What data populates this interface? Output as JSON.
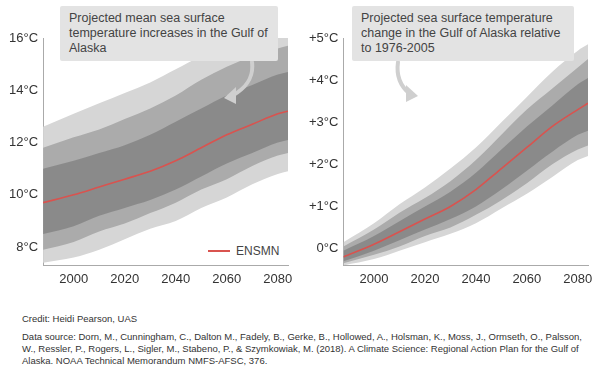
{
  "chart_data": [
    {
      "type": "line",
      "title": "Projected mean sea surface temperature increases in the Gulf of Alaska",
      "x": [
        1988,
        2000,
        2010,
        2020,
        2030,
        2040,
        2050,
        2060,
        2070,
        2080,
        2084
      ],
      "series": [
        {
          "name": "ENSMN",
          "color": "#d9534f",
          "values": [
            9.7,
            10.0,
            10.3,
            10.6,
            10.9,
            11.3,
            11.8,
            12.3,
            12.7,
            13.1,
            13.2
          ]
        }
      ],
      "bands": [
        {
          "color": "#d6d6d6",
          "lower": [
            7.4,
            7.6,
            7.9,
            8.3,
            8.7,
            9.0,
            9.5,
            9.9,
            10.4,
            10.8,
            10.9
          ],
          "upper": [
            12.6,
            13.1,
            13.5,
            13.9,
            14.3,
            14.8,
            15.3,
            15.7,
            16.0,
            16.2,
            16.3
          ]
        },
        {
          "color": "#ababab",
          "lower": [
            7.9,
            8.2,
            8.6,
            8.9,
            9.3,
            9.7,
            10.2,
            10.6,
            11.1,
            11.5,
            11.6
          ],
          "upper": [
            11.8,
            12.2,
            12.5,
            12.9,
            13.3,
            13.8,
            14.4,
            14.9,
            15.3,
            15.6,
            15.7
          ]
        },
        {
          "color": "#8a8a8a",
          "lower": [
            8.5,
            8.8,
            9.2,
            9.5,
            9.8,
            10.2,
            10.7,
            11.2,
            11.6,
            12.0,
            12.1
          ],
          "upper": [
            11.0,
            11.3,
            11.6,
            11.9,
            12.3,
            12.8,
            13.3,
            13.8,
            14.2,
            14.6,
            14.7
          ]
        }
      ],
      "xlim": [
        1988,
        2084
      ],
      "xticks": [
        2000,
        2020,
        2040,
        2060,
        2080
      ],
      "ylim": [
        7.3,
        16
      ],
      "yticks": [
        {
          "value": 8,
          "label": "8°C"
        },
        {
          "value": 10,
          "label": "10°C"
        },
        {
          "value": 12,
          "label": "12°C"
        },
        {
          "value": 14,
          "label": "14°C"
        },
        {
          "value": 16,
          "label": "16°C"
        }
      ],
      "grid": false,
      "legend": "bottom right"
    },
    {
      "type": "line",
      "title": "Projected sea surface temperature change in the Gulf of Alaska relative to 1976-2005",
      "x": [
        1988,
        2000,
        2010,
        2020,
        2030,
        2040,
        2050,
        2060,
        2070,
        2080,
        2084
      ],
      "series": [
        {
          "color": "#d9534f",
          "values": [
            -0.2,
            0.1,
            0.4,
            0.7,
            1.0,
            1.4,
            1.9,
            2.4,
            2.9,
            3.3,
            3.45
          ]
        }
      ],
      "bands": [
        {
          "color": "#d6d6d6",
          "lower": [
            -0.4,
            -0.25,
            -0.05,
            0.15,
            0.35,
            0.6,
            0.95,
            1.3,
            1.7,
            2.1,
            2.2
          ],
          "upper": [
            0.15,
            0.6,
            1.05,
            1.45,
            1.9,
            2.4,
            3.0,
            3.6,
            4.2,
            4.7,
            4.85
          ]
        },
        {
          "color": "#ababab",
          "lower": [
            -0.35,
            -0.15,
            0.05,
            0.3,
            0.5,
            0.8,
            1.15,
            1.55,
            2.0,
            2.35,
            2.45
          ],
          "upper": [
            0.05,
            0.45,
            0.85,
            1.2,
            1.6,
            2.1,
            2.7,
            3.3,
            3.8,
            4.3,
            4.5
          ]
        },
        {
          "color": "#8a8a8a",
          "lower": [
            -0.3,
            -0.05,
            0.2,
            0.45,
            0.7,
            1.0,
            1.4,
            1.85,
            2.3,
            2.7,
            2.8
          ],
          "upper": [
            -0.05,
            0.3,
            0.65,
            1.0,
            1.35,
            1.8,
            2.35,
            2.9,
            3.4,
            3.9,
            4.05
          ]
        }
      ],
      "xlim": [
        1988,
        2084
      ],
      "xticks": [
        2000,
        2020,
        2040,
        2060,
        2080
      ],
      "ylim": [
        -0.4,
        5
      ],
      "yticks": [
        {
          "value": 0,
          "label": "0°C"
        },
        {
          "value": 1,
          "label": "+1°C"
        },
        {
          "value": 2,
          "label": "+2°C"
        },
        {
          "value": 3,
          "label": "+3°C"
        },
        {
          "value": 4,
          "label": "+4°C"
        },
        {
          "value": 5,
          "label": "+5°C"
        }
      ],
      "grid": false
    }
  ],
  "credit": "Credit: Heidi Pearson, UAS",
  "data_source": "Data source: Dorn, M., Cunningham, C., Dalton M., Fadely, B., Gerke, B., Hollowed, A., Holsman, K., Moss, J., Ormseth, O., Palsson, W., Ressler, P., Rogers, L., Sigler, M., Stabeno, P., & Szymkowiak, M. (2018). A Climate Science: Regional Action Plan for the Gulf of Alaska. NOAA Technical Memorandum NMFS-AFSC, 376."
}
